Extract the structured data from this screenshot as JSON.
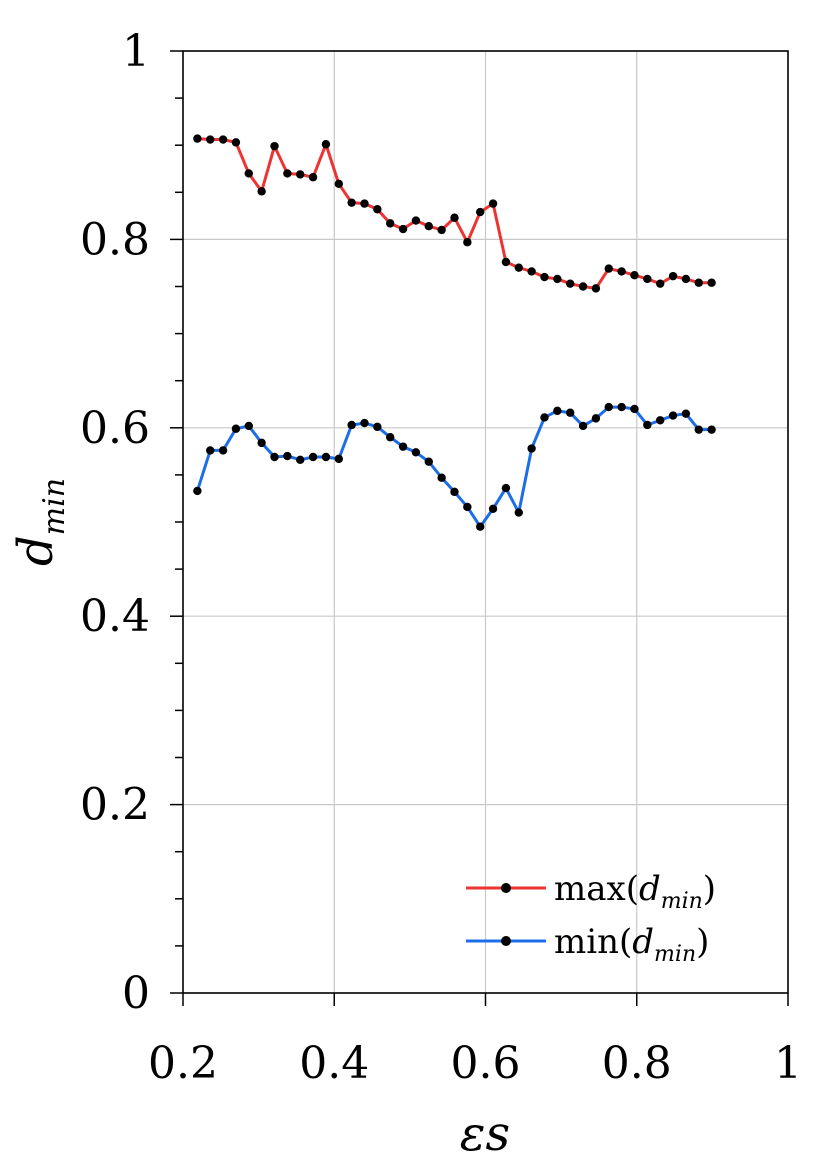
{
  "chart_data": {
    "type": "line",
    "xlabel": "εs",
    "ylabel": "d",
    "ylabel_sub": "min",
    "xlim": [
      0.2,
      1.0
    ],
    "ylim": [
      0,
      1
    ],
    "grid": true,
    "legend_position": "bottom-right",
    "xticks": [
      "0.2",
      "0.4",
      "0.6",
      "0.8",
      "1"
    ],
    "yticks": [
      "0",
      "0.2",
      "0.4",
      "0.6",
      "0.8",
      "1"
    ],
    "x": [
      0.219,
      0.236,
      0.253,
      0.27,
      0.287,
      0.304,
      0.321,
      0.338,
      0.355,
      0.372,
      0.389,
      0.406,
      0.423,
      0.44,
      0.457,
      0.474,
      0.491,
      0.508,
      0.525,
      0.542,
      0.559,
      0.576,
      0.593,
      0.61,
      0.627,
      0.644,
      0.661,
      0.678,
      0.695,
      0.712,
      0.729,
      0.746,
      0.763,
      0.78,
      0.797,
      0.814,
      0.831,
      0.848,
      0.865,
      0.882,
      0.899
    ],
    "series": [
      {
        "name": "max",
        "name_sub": "min",
        "color": "#ee3333",
        "values": [
          0.907,
          0.906,
          0.906,
          0.903,
          0.87,
          0.851,
          0.899,
          0.87,
          0.869,
          0.866,
          0.901,
          0.859,
          0.839,
          0.838,
          0.832,
          0.817,
          0.811,
          0.82,
          0.814,
          0.81,
          0.823,
          0.797,
          0.829,
          0.838,
          0.776,
          0.77,
          0.766,
          0.76,
          0.758,
          0.753,
          0.75,
          0.748,
          0.769,
          0.766,
          0.762,
          0.758,
          0.753,
          0.761,
          0.758,
          0.754,
          0.754
        ]
      },
      {
        "name": "min",
        "name_sub": "min",
        "color": "#1b6ee8",
        "values": [
          0.533,
          0.576,
          0.576,
          0.599,
          0.602,
          0.584,
          0.569,
          0.57,
          0.566,
          0.569,
          0.569,
          0.567,
          0.603,
          0.605,
          0.601,
          0.59,
          0.58,
          0.574,
          0.564,
          0.547,
          0.532,
          0.516,
          0.495,
          0.514,
          0.536,
          0.51,
          0.578,
          0.611,
          0.618,
          0.616,
          0.602,
          0.61,
          0.622,
          0.622,
          0.62,
          0.603,
          0.608,
          0.613,
          0.615,
          0.598,
          0.598
        ]
      }
    ]
  }
}
